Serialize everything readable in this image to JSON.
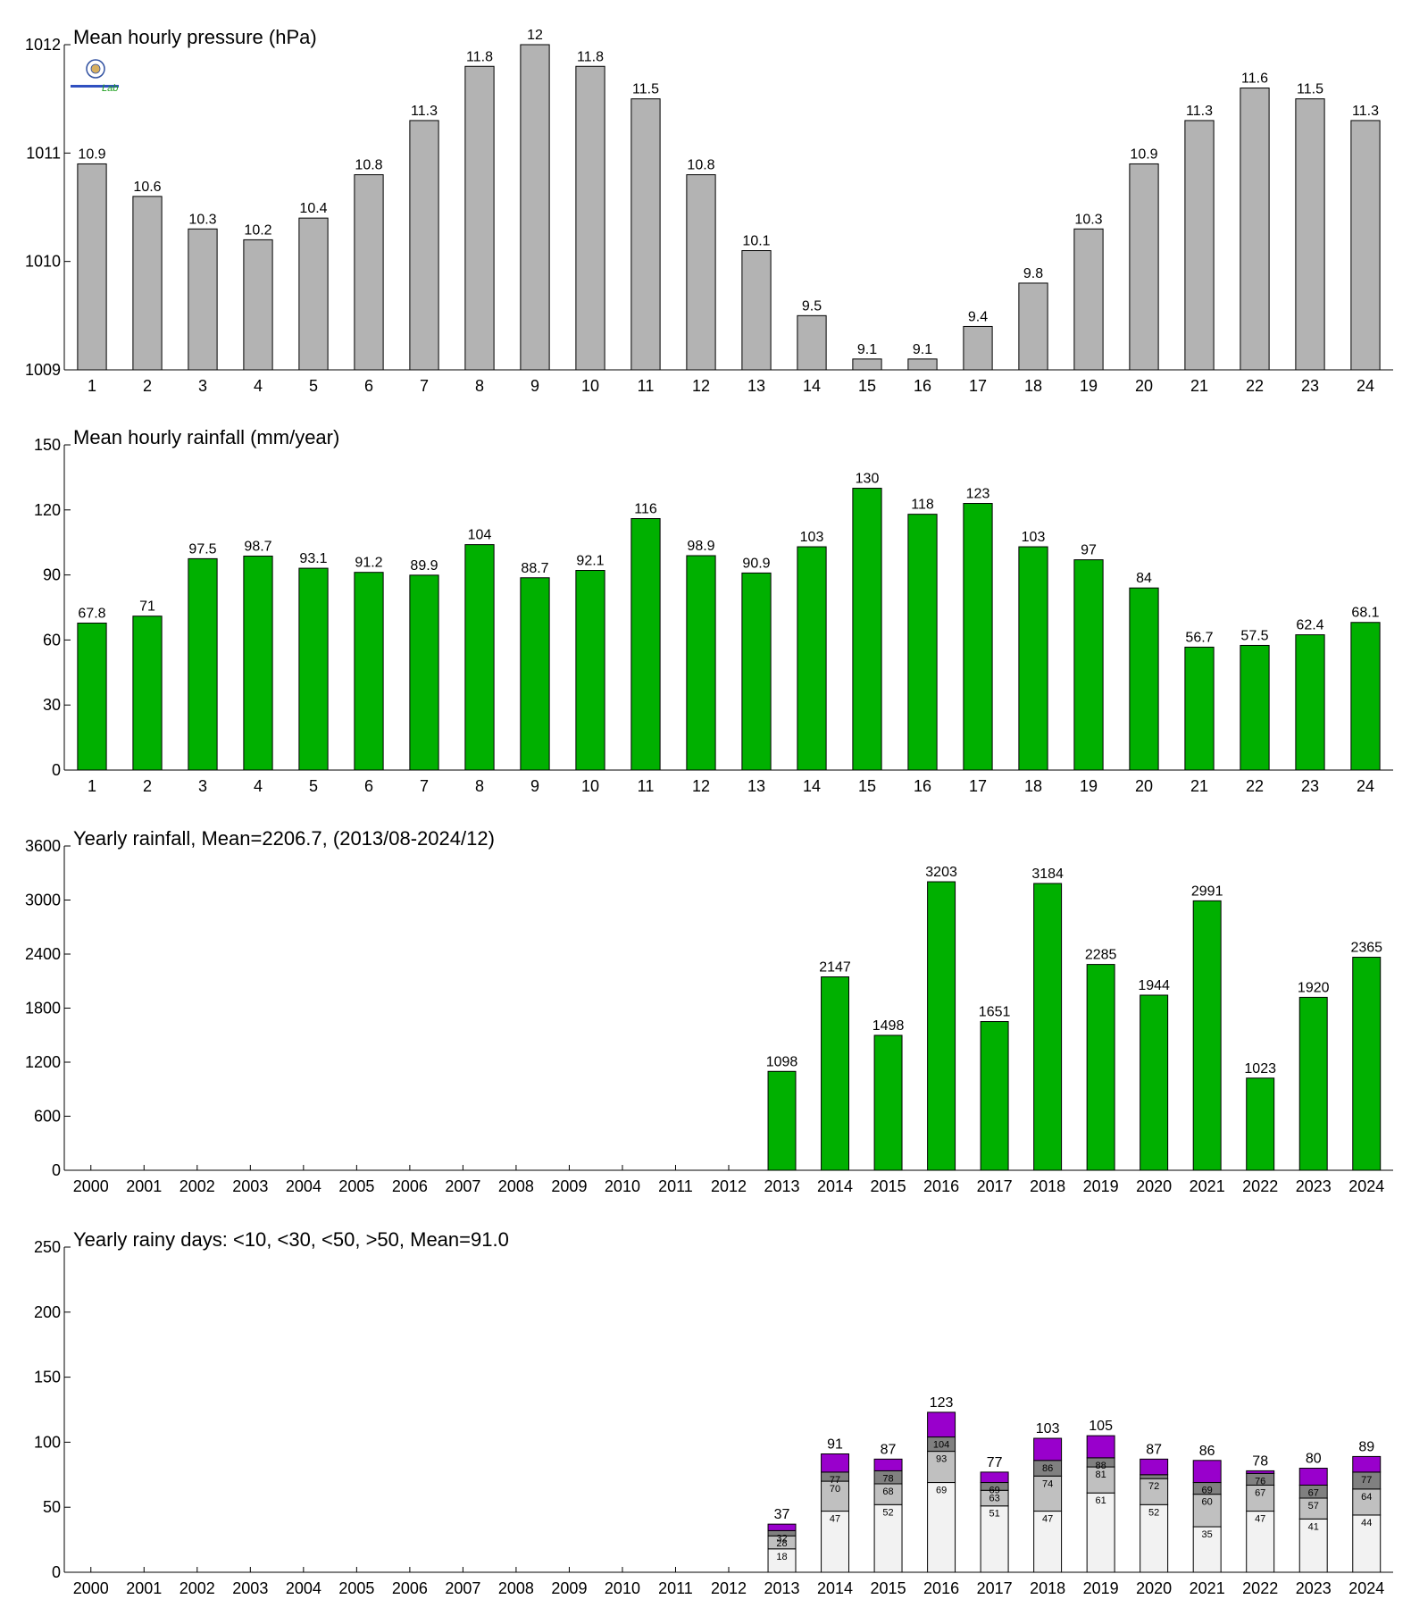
{
  "colors": {
    "pressure_bar": "#b3b3b3",
    "rain_bar": "#00b000",
    "days_lt10": "#f2f2f2",
    "days_lt30": "#c0c0c0",
    "days_lt50": "#808080",
    "days_gt50": "#9900cc",
    "stroke": "#000000"
  },
  "logo": {
    "text": "Lab",
    "icon": "lab-seal-logo"
  },
  "chart_data": [
    {
      "id": "pressure",
      "type": "bar",
      "title": "Mean hourly pressure (hPa)",
      "xlabel": "",
      "ylabel": "",
      "categories": [
        "1",
        "2",
        "3",
        "4",
        "5",
        "6",
        "7",
        "8",
        "9",
        "10",
        "11",
        "12",
        "13",
        "14",
        "15",
        "16",
        "17",
        "18",
        "19",
        "20",
        "21",
        "22",
        "23",
        "24"
      ],
      "values": [
        1010.9,
        1010.6,
        1010.3,
        1010.2,
        1010.4,
        1010.8,
        1011.3,
        1011.8,
        1012,
        1011.8,
        1011.5,
        1010.8,
        1010.1,
        1009.5,
        1009.1,
        1009.1,
        1009.4,
        1009.8,
        1010.3,
        1010.9,
        1011.3,
        1011.6,
        1011.5,
        1011.3
      ],
      "data_labels": [
        "10.9",
        "10.6",
        "10.3",
        "10.2",
        "10.4",
        "10.8",
        "11.3",
        "11.8",
        "12",
        "11.8",
        "11.5",
        "10.8",
        "10.1",
        "9.5",
        "9.1",
        "9.1",
        "9.4",
        "9.8",
        "10.3",
        "10.9",
        "11.3",
        "11.6",
        "11.5",
        "11.3"
      ],
      "ylim": [
        1009,
        1012
      ],
      "yticks": [
        1009,
        1010,
        1011,
        1012
      ],
      "grid": false,
      "color_key": "pressure_bar"
    },
    {
      "id": "hourly_rain",
      "type": "bar",
      "title": "Mean hourly rainfall (mm/year)",
      "xlabel": "",
      "ylabel": "",
      "categories": [
        "1",
        "2",
        "3",
        "4",
        "5",
        "6",
        "7",
        "8",
        "9",
        "10",
        "11",
        "12",
        "13",
        "14",
        "15",
        "16",
        "17",
        "18",
        "19",
        "20",
        "21",
        "22",
        "23",
        "24"
      ],
      "values": [
        67.8,
        71,
        97.5,
        98.7,
        93.1,
        91.2,
        89.9,
        104,
        88.7,
        92.1,
        116,
        98.9,
        90.9,
        103,
        130,
        118,
        123,
        103,
        97,
        84,
        56.7,
        57.5,
        62.4,
        68.1
      ],
      "data_labels": [
        "67.8",
        "71",
        "97.5",
        "98.7",
        "93.1",
        "91.2",
        "89.9",
        "104",
        "88.7",
        "92.1",
        "116",
        "98.9",
        "90.9",
        "103",
        "130",
        "118",
        "123",
        "103",
        "97",
        "84",
        "56.7",
        "57.5",
        "62.4",
        "68.1"
      ],
      "ylim": [
        0,
        150
      ],
      "yticks": [
        0,
        30,
        60,
        90,
        120,
        150
      ],
      "grid": false,
      "color_key": "rain_bar"
    },
    {
      "id": "yearly_rain",
      "type": "bar",
      "title": "Yearly rainfall, Mean=2206.7, (2013/08-2024/12)",
      "xlabel": "",
      "ylabel": "",
      "categories": [
        "2000",
        "2001",
        "2002",
        "2003",
        "2004",
        "2005",
        "2006",
        "2007",
        "2008",
        "2009",
        "2010",
        "2011",
        "2012",
        "2013",
        "2014",
        "2015",
        "2016",
        "2017",
        "2018",
        "2019",
        "2020",
        "2021",
        "2022",
        "2023",
        "2024"
      ],
      "values": [
        null,
        null,
        null,
        null,
        null,
        null,
        null,
        null,
        null,
        null,
        null,
        null,
        null,
        1098,
        2147,
        1498,
        3203,
        1651,
        3184,
        2285,
        1944,
        2991,
        1023,
        1920,
        2365
      ],
      "data_labels": [
        "",
        "",
        "",
        "",
        "",
        "",
        "",
        "",
        "",
        "",
        "",
        "",
        "",
        "1098",
        "2147",
        "1498",
        "3203",
        "1651",
        "3184",
        "2285",
        "1944",
        "2991",
        "1023",
        "1920",
        "2365"
      ],
      "ylim": [
        0,
        3600
      ],
      "yticks": [
        0,
        600,
        1200,
        1800,
        2400,
        3000,
        3600
      ],
      "grid": false,
      "color_key": "rain_bar"
    },
    {
      "id": "rainy_days",
      "type": "bar",
      "stacked": true,
      "title": "Yearly rainy days: <10, <30, <50, >50, Mean=91.0",
      "xlabel": "",
      "ylabel": "",
      "categories": [
        "2000",
        "2001",
        "2002",
        "2003",
        "2004",
        "2005",
        "2006",
        "2007",
        "2008",
        "2009",
        "2010",
        "2011",
        "2012",
        "2013",
        "2014",
        "2015",
        "2016",
        "2017",
        "2018",
        "2019",
        "2020",
        "2021",
        "2022",
        "2023",
        "2024"
      ],
      "cumulative_series": [
        {
          "name": "<10",
          "color_key": "days_lt10",
          "values": [
            null,
            null,
            null,
            null,
            null,
            null,
            null,
            null,
            null,
            null,
            null,
            null,
            null,
            18,
            47,
            52,
            69,
            51,
            47,
            61,
            52,
            35,
            47,
            41,
            44
          ]
        },
        {
          "name": "<30",
          "color_key": "days_lt30",
          "values": [
            null,
            null,
            null,
            null,
            null,
            null,
            null,
            null,
            null,
            null,
            null,
            null,
            null,
            28,
            70,
            68,
            93,
            63,
            74,
            81,
            72,
            60,
            67,
            57,
            64
          ]
        },
        {
          "name": "<50",
          "color_key": "days_lt50",
          "values": [
            null,
            null,
            null,
            null,
            null,
            null,
            null,
            null,
            null,
            null,
            null,
            null,
            null,
            32,
            77,
            78,
            104,
            69,
            86,
            88,
            75,
            69,
            76,
            67,
            77
          ]
        },
        {
          "name": ">50",
          "color_key": "days_gt50",
          "values": [
            null,
            null,
            null,
            null,
            null,
            null,
            null,
            null,
            null,
            null,
            null,
            null,
            null,
            37,
            91,
            87,
            123,
            77,
            103,
            105,
            87,
            86,
            78,
            80,
            89
          ]
        }
      ],
      "segment_labels": [
        [
          "",
          "",
          "",
          ""
        ],
        [
          "",
          "",
          "",
          ""
        ],
        [
          "",
          "",
          "",
          ""
        ],
        [
          "",
          "",
          "",
          ""
        ],
        [
          "",
          "",
          "",
          ""
        ],
        [
          "",
          "",
          "",
          ""
        ],
        [
          "",
          "",
          "",
          ""
        ],
        [
          "",
          "",
          "",
          ""
        ],
        [
          "",
          "",
          "",
          ""
        ],
        [
          "",
          "",
          "",
          ""
        ],
        [
          "",
          "",
          "",
          ""
        ],
        [
          "",
          "",
          "",
          ""
        ],
        [
          "",
          "",
          "",
          ""
        ],
        [
          "18",
          "28",
          "32",
          "37"
        ],
        [
          "47",
          "70",
          "77",
          "91"
        ],
        [
          "52",
          "68",
          "78",
          "87"
        ],
        [
          "69",
          "93",
          "104",
          "123"
        ],
        [
          "51",
          "63",
          "69",
          "77"
        ],
        [
          "47",
          "74",
          "86",
          "103"
        ],
        [
          "61",
          "81",
          "88",
          "105"
        ],
        [
          "52",
          "72",
          "",
          "87"
        ],
        [
          "35",
          "60",
          "69",
          "86"
        ],
        [
          "47",
          "67",
          "76",
          "78"
        ],
        [
          "41",
          "57",
          "67",
          "80"
        ],
        [
          "44",
          "64",
          "77",
          "89"
        ]
      ],
      "ylim": [
        0,
        250
      ],
      "yticks": [
        0,
        50,
        100,
        150,
        200,
        250
      ],
      "grid": false
    }
  ]
}
